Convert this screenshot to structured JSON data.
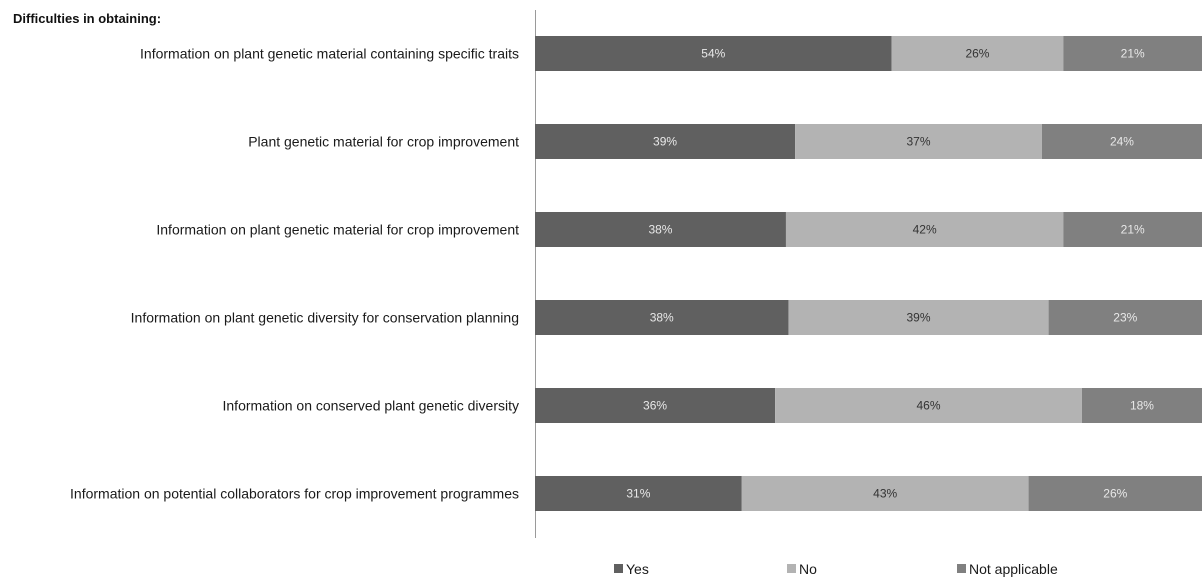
{
  "chart_data": {
    "type": "bar",
    "orientation": "horizontal",
    "stacked": true,
    "title": "Difficulties in obtaining:",
    "categories": [
      "Information on plant genetic material containing specific traits",
      "Plant genetic material for crop improvement",
      "Information on plant genetic material for crop improvement",
      "Information on plant genetic diversity for conservation planning",
      "Information on conserved plant genetic diversity",
      "Information on potential collaborators for crop improvement programmes"
    ],
    "series": [
      {
        "name": "Yes",
        "values": [
          54,
          39,
          38,
          38,
          36,
          31
        ],
        "labels": [
          "54%",
          "39%",
          "38%",
          "38%",
          "36%",
          "31%"
        ],
        "color": "#606060",
        "label_color": "#e8e8e8"
      },
      {
        "name": "No",
        "values": [
          26,
          37,
          42,
          39,
          46,
          43
        ],
        "labels": [
          "26%",
          "37%",
          "42%",
          "39%",
          "46%",
          "43%"
        ],
        "color": "#b3b3b3",
        "label_color": "#333333"
      },
      {
        "name": "Not applicable",
        "values": [
          21,
          24,
          21,
          23,
          18,
          26
        ],
        "labels": [
          "21%",
          "24%",
          "21%",
          "23%",
          "18%",
          "26%"
        ],
        "color": "#808080",
        "label_color": "#e8e8e8"
      }
    ],
    "legend_position": "bottom",
    "grid": false
  }
}
